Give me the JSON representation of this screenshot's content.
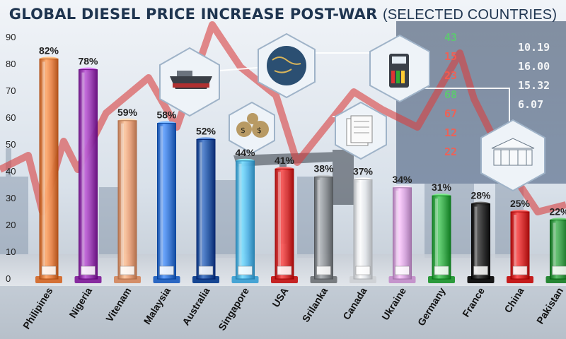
{
  "title": {
    "main": "GLOBAL DIESEL PRICE INCREASE POST-WAR",
    "sub": "(SELECTED COUNTRIES)"
  },
  "chart_data": {
    "type": "bar",
    "title": "GLOBAL DIESEL PRICE INCREASE POST-WAR (SELECTED COUNTRIES)",
    "xlabel": "",
    "ylabel": "",
    "ylim": [
      0,
      90
    ],
    "yticks": [
      0,
      10,
      20,
      30,
      40,
      50,
      60,
      70,
      80,
      90
    ],
    "grid": false,
    "categories": [
      "Philipines",
      "Nigeria",
      "Vitenam",
      "Malaysia",
      "Australia",
      "Singapore",
      "USA",
      "Srilanka",
      "Canada",
      "Ukraine",
      "Germany",
      "France",
      "China",
      "Pakistan"
    ],
    "values": [
      82,
      78,
      59,
      58,
      52,
      44,
      41,
      38,
      37,
      34,
      31,
      28,
      25,
      22
    ],
    "value_labels": [
      "82%",
      "78%",
      "59%",
      "58%",
      "52%",
      "44%",
      "41%",
      "38%",
      "37%",
      "34%",
      "31%",
      "28%",
      "25%",
      "22%"
    ],
    "bar_colors": [
      "#e8854a",
      "#9b3fb3",
      "#e8a27c",
      "#3e7bd6",
      "#2a5aa6",
      "#5ab8e8",
      "#d93838",
      "#8c9094",
      "#e3e6ea",
      "#d9a8e0",
      "#3fae4f",
      "#2a2a2a",
      "#d93030",
      "#3a9a48"
    ]
  },
  "ticker": {
    "values": [
      "43",
      "15",
      "23",
      "68",
      "67",
      "12",
      "22"
    ],
    "prices": [
      "10.19",
      "16.00",
      "15.32",
      "6.07"
    ]
  }
}
